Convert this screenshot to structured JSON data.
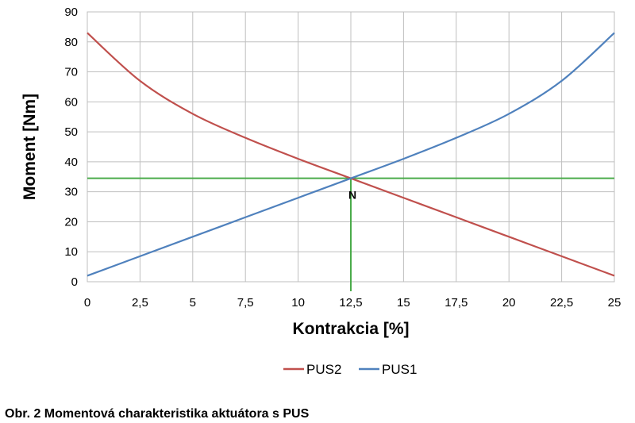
{
  "chart_data": {
    "type": "line",
    "xlabel": "Kontrakcia [%]",
    "ylabel": "Moment [Nm]",
    "xlim": [
      0,
      25
    ],
    "ylim": [
      0,
      90
    ],
    "x_ticks": [
      "0",
      "2,5",
      "5",
      "7,5",
      "10",
      "12,5",
      "15",
      "17,5",
      "20",
      "22,5",
      "25"
    ],
    "y_ticks": [
      "0",
      "10",
      "20",
      "30",
      "40",
      "50",
      "60",
      "70",
      "80",
      "90"
    ],
    "grid": true,
    "legend_position": "bottom",
    "x": [
      0,
      2.5,
      5,
      7.5,
      10,
      12.5,
      15,
      17.5,
      20,
      22.5,
      25
    ],
    "series": [
      {
        "name": "PUS2",
        "color": "#c0504d",
        "values": [
          83,
          67,
          56,
          48,
          41,
          34.5,
          28,
          21.5,
          15,
          8.5,
          2
        ]
      },
      {
        "name": "PUS1",
        "color": "#4f81bd",
        "values": [
          2,
          8.5,
          15,
          21.5,
          28,
          34.5,
          41,
          48,
          56,
          67,
          83
        ]
      }
    ],
    "reference_lines": {
      "color": "#4aab4a",
      "horizontal_y": 34.5,
      "vertical_x": 12.5
    },
    "annotation": {
      "text": "N",
      "x": 12.5,
      "y": 34.5
    }
  },
  "caption": "Obr. 2 Momentová charakteristika aktuátora s  PUS"
}
